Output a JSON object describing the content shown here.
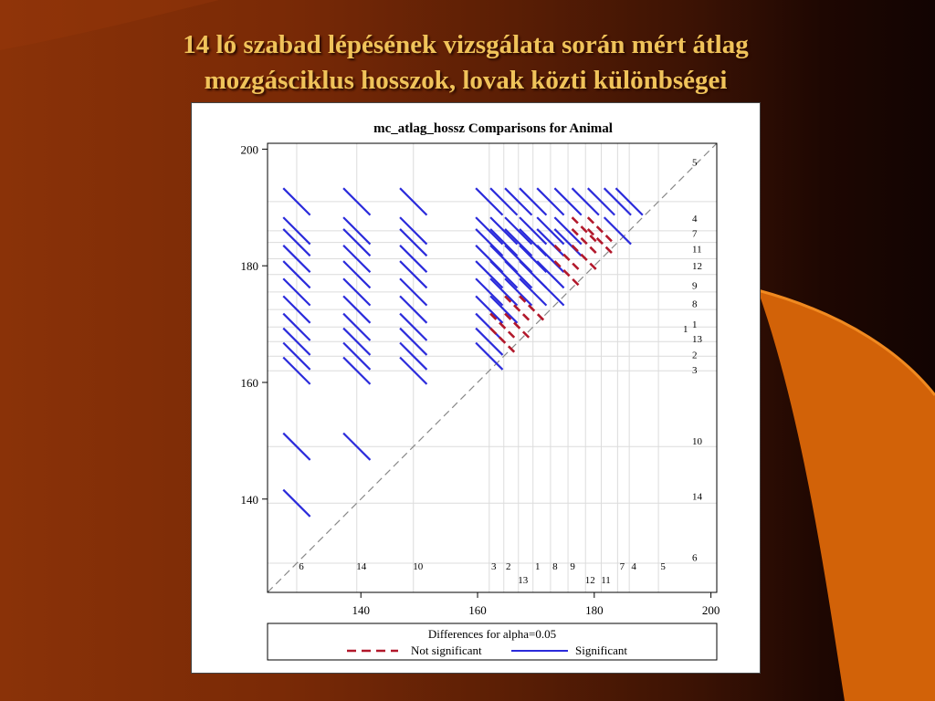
{
  "slide": {
    "title_line1": "14 ló szabad lépésének vizsgálata során mért átlag",
    "title_line2": "mozgásciklus hosszok, lovak közti különbségei"
  },
  "colors": {
    "significant": "#2b2bdb",
    "not_significant": "#b2182b",
    "title": "#f0c35a",
    "accent_orange": "#e06a08"
  },
  "chart_data": {
    "type": "diffogram",
    "title": "mc_atlag_hossz Comparisons for Animal",
    "xlim": [
      124,
      201
    ],
    "ylim": [
      124,
      201
    ],
    "x_ticks": [
      140,
      160,
      180,
      200
    ],
    "y_ticks": [
      140,
      160,
      180,
      200
    ],
    "reference_line": "diagonal y = x",
    "grid": true,
    "legend": {
      "title": "Differences for alpha=0.05",
      "entries": [
        {
          "label": "Not significant",
          "style": "dashed",
          "color": "#b2182b"
        },
        {
          "label": "Significant",
          "style": "solid",
          "color": "#2b2bdb"
        }
      ],
      "placement": "bottom"
    },
    "animals": [
      {
        "label": "6",
        "mean": 129.0,
        "label_row": "top"
      },
      {
        "label": "14",
        "mean": 139.3,
        "label_row": "top"
      },
      {
        "label": "10",
        "mean": 149.0,
        "label_row": "top"
      },
      {
        "label": "3",
        "mean": 162.0,
        "label_row": "top"
      },
      {
        "label": "2",
        "mean": 164.5,
        "label_row": "top"
      },
      {
        "label": "13",
        "mean": 167.0,
        "label_row": "bottom"
      },
      {
        "label": "1",
        "mean": 169.5,
        "label_row": "top"
      },
      {
        "label": "8",
        "mean": 172.5,
        "label_row": "top"
      },
      {
        "label": "9",
        "mean": 175.5,
        "label_row": "top"
      },
      {
        "label": "12",
        "mean": 178.5,
        "label_row": "bottom"
      },
      {
        "label": "11",
        "mean": 181.2,
        "label_row": "bottom"
      },
      {
        "label": "7",
        "mean": 184.0,
        "label_row": "top"
      },
      {
        "label": "4",
        "mean": 186.0,
        "label_row": "top"
      },
      {
        "label": "5",
        "mean": 191.0,
        "label_row": "top"
      }
    ],
    "right_labels": [
      {
        "label": "5",
        "y": 197.8
      },
      {
        "label": "4",
        "y": 188.2
      },
      {
        "label": "7",
        "y": 185.6
      },
      {
        "label": "11",
        "y": 182.9
      },
      {
        "label": "12",
        "y": 180.0
      },
      {
        "label": "9",
        "y": 176.7
      },
      {
        "label": "8",
        "y": 173.5
      },
      {
        "label": "1",
        "y": 170.0
      },
      {
        "label": "13",
        "y": 167.5
      },
      {
        "label": "2",
        "y": 164.8
      },
      {
        "label": "3",
        "y": 162.2
      },
      {
        "label": "10",
        "y": 150.0
      },
      {
        "label": "14",
        "y": 140.5
      },
      {
        "label": "6",
        "y": 130.0
      }
    ],
    "ci_half_width": 2.3,
    "not_significant_pairs": [
      [
        "1",
        "13"
      ],
      [
        "1",
        "2"
      ],
      [
        "13",
        "2"
      ],
      [
        "8",
        "1"
      ],
      [
        "8",
        "13"
      ],
      [
        "4",
        "11"
      ],
      [
        "4",
        "12"
      ],
      [
        "7",
        "12"
      ],
      [
        "7",
        "11"
      ],
      [
        "11",
        "12"
      ],
      [
        "11",
        "9"
      ],
      [
        "12",
        "9"
      ]
    ]
  }
}
